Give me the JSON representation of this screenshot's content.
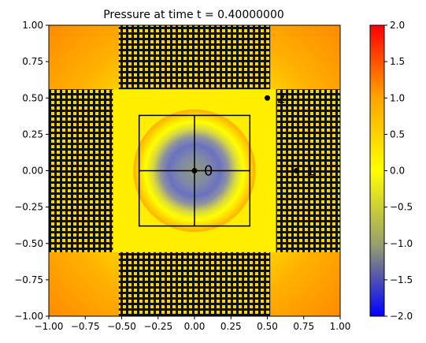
{
  "chart_data": {
    "type": "heatmap",
    "title": "Pressure at time t =     0.40000000",
    "xlabel": "",
    "ylabel": "",
    "xlim": [
      -1.0,
      1.0
    ],
    "ylim": [
      -1.0,
      1.0
    ],
    "x_ticks": [
      "−1.00",
      "−0.75",
      "−0.50",
      "−0.25",
      "0.00",
      "0.25",
      "0.50",
      "0.75",
      "1.00"
    ],
    "x_tick_values": [
      -1.0,
      -0.75,
      -0.5,
      -0.25,
      0.0,
      0.25,
      0.5,
      0.75,
      1.0
    ],
    "y_ticks": [
      "1.00",
      "0.75",
      "0.50",
      "0.25",
      "0.00",
      "−0.25",
      "−0.50",
      "−0.75",
      "−1.00"
    ],
    "y_tick_values": [
      1.0,
      0.75,
      0.5,
      0.25,
      0.0,
      -0.25,
      -0.5,
      -0.75,
      -1.0
    ],
    "colorbar": {
      "range": [
        -2.0,
        2.0
      ],
      "ticks": [
        "2.0",
        "1.5",
        "1.0",
        "0.5",
        "0.0",
        "−0.5",
        "−1.0",
        "−1.5",
        "−2.0"
      ],
      "tick_values": [
        2.0,
        1.5,
        1.0,
        0.5,
        0.0,
        -0.5,
        -1.0,
        -1.5,
        -2.0
      ],
      "colors": [
        "#0000ff",
        "#9aa06a",
        "#ffff00",
        "#ffa500",
        "#ff0000"
      ]
    },
    "field": {
      "description_values": {
        "center_value": -1.0,
        "ring_radius": 0.1,
        "ring_width": 0.12,
        "background_value": 0.0,
        "corner_value": 1.0
      }
    },
    "grid_blocks": [
      {
        "name": "top",
        "x": [
          -0.52,
          0.52
        ],
        "y": [
          0.56,
          1.0
        ]
      },
      {
        "name": "bottom",
        "x": [
          -0.52,
          0.52
        ],
        "y": [
          -1.0,
          -0.56
        ]
      },
      {
        "name": "left",
        "x": [
          -1.0,
          -0.56
        ],
        "y": [
          -0.56,
          0.56
        ]
      },
      {
        "name": "right",
        "x": [
          0.56,
          1.0
        ],
        "y": [
          -0.56,
          0.56
        ]
      }
    ],
    "box": {
      "x": [
        -0.38,
        0.38
      ],
      "y": [
        -0.38,
        0.38
      ]
    },
    "cross_lines": [
      {
        "x": [
          0.0,
          0.0
        ],
        "y": [
          -0.38,
          0.38
        ]
      },
      {
        "x": [
          -0.38,
          0.38
        ],
        "y": [
          0.0,
          0.0
        ]
      }
    ],
    "points": [
      {
        "label": "0",
        "x": 0.0,
        "y": 0.0
      },
      {
        "label": "2",
        "x": 0.5,
        "y": 0.5
      },
      {
        "label": "1",
        "x": 0.7,
        "y": 0.0
      }
    ]
  }
}
